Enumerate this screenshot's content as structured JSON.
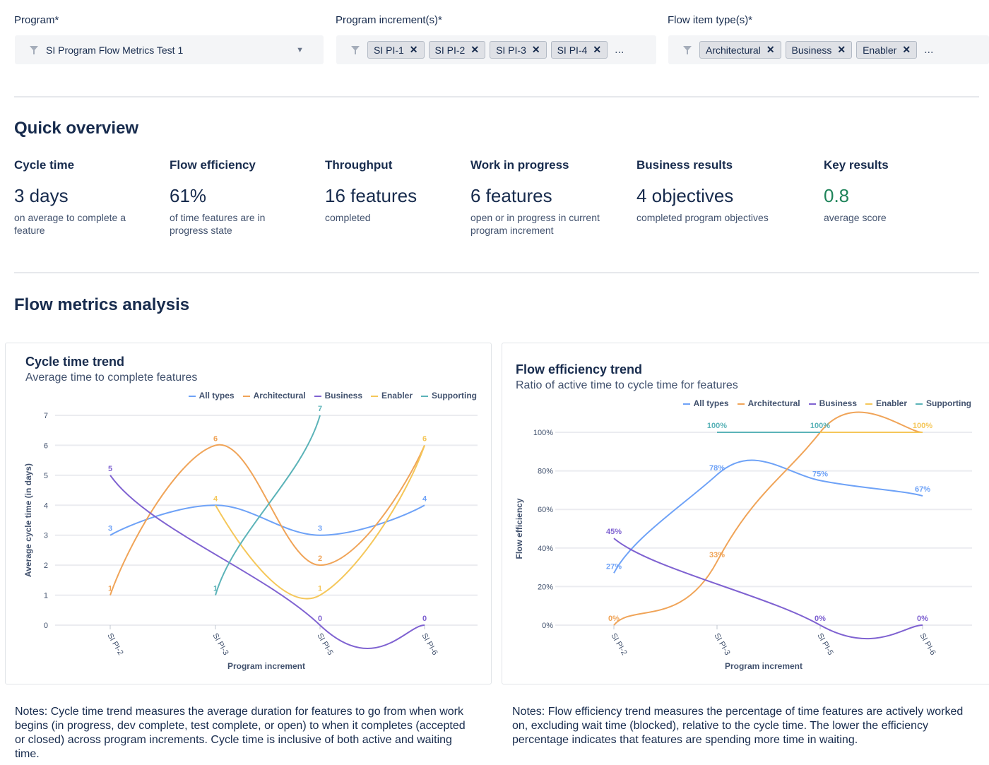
{
  "filters": {
    "program": {
      "label": "Program*",
      "value": "SI Program Flow Metrics Test 1"
    },
    "increments": {
      "label": "Program increment(s)*",
      "chips": [
        "SI PI-1",
        "SI PI-2",
        "SI PI-3",
        "SI PI-4"
      ],
      "more": "..."
    },
    "types": {
      "label": "Flow item type(s)*",
      "chips": [
        "Architectural",
        "Business",
        "Enabler"
      ],
      "more": "..."
    }
  },
  "quick_overview": {
    "title": "Quick overview",
    "metrics": [
      {
        "title": "Cycle time",
        "value": "3 days",
        "desc": "on average to complete a feature"
      },
      {
        "title": "Flow efficiency",
        "value": "61%",
        "desc": "of time features are in progress state"
      },
      {
        "title": "Throughput",
        "value": "16 features",
        "desc": "completed"
      },
      {
        "title": "Work in progress",
        "value": "6 features",
        "desc": "open or in progress in current program increment"
      },
      {
        "title": "Business results",
        "value": "4 objectives",
        "desc": "completed program objectives"
      },
      {
        "title": "Key results",
        "value": "0.8",
        "desc": "average score",
        "color": "#1f845a"
      }
    ]
  },
  "analysis": {
    "title": "Flow metrics analysis"
  },
  "colors": {
    "All types": "#6ea2f7",
    "Architectural": "#f0a458",
    "Business": "#7f62d1",
    "Enabler": "#f5c75a",
    "Supporting": "#5bb3b8"
  },
  "chart_data": [
    {
      "type": "line",
      "title": "Cycle time trend",
      "subtitle": "Average time to complete features",
      "xlabel": "Program increment",
      "ylabel": "Average cycle time (in days)",
      "categories": [
        "SI PI-2",
        "SI PI-3",
        "SI PI-5",
        "SI PI-6"
      ],
      "ylim": [
        0,
        7
      ],
      "yticks": [
        "0",
        "1",
        "2",
        "3",
        "4",
        "5",
        "6",
        "7"
      ],
      "grid": true,
      "legend": "top-right",
      "series": [
        {
          "name": "All types",
          "values": [
            3,
            4,
            3,
            4
          ]
        },
        {
          "name": "Architectural",
          "values": [
            1,
            6,
            2,
            6
          ]
        },
        {
          "name": "Business",
          "values": [
            5,
            null,
            0,
            0
          ]
        },
        {
          "name": "Enabler",
          "values": [
            null,
            4,
            1,
            6
          ]
        },
        {
          "name": "Supporting",
          "values": [
            null,
            1,
            7,
            null
          ]
        }
      ],
      "notes": "Notes: Cycle time trend measures the average duration for features to go from when work begins (in progress, dev complete, test complete, or open) to when it completes (accepted or closed) across program increments. Cycle time is inclusive of both active and waiting time."
    },
    {
      "type": "line",
      "title": "Flow efficiency trend",
      "subtitle": "Ratio of active time to cycle time for features",
      "xlabel": "Program increment",
      "ylabel": "Flow efficiency",
      "categories": [
        "SI PI-2",
        "SI PI-3",
        "SI PI-5",
        "SI PI-6"
      ],
      "ylim": [
        0,
        100
      ],
      "yticks": [
        "0%",
        "20%",
        "40%",
        "60%",
        "80%",
        "100%"
      ],
      "grid": true,
      "legend": "top-right",
      "unit": "%",
      "series": [
        {
          "name": "All types",
          "values": [
            27,
            78,
            75,
            67
          ]
        },
        {
          "name": "Architectural",
          "values": [
            0,
            33,
            100,
            100
          ]
        },
        {
          "name": "Business",
          "values": [
            45,
            null,
            0,
            0
          ]
        },
        {
          "name": "Enabler",
          "values": [
            null,
            null,
            100,
            100
          ]
        },
        {
          "name": "Supporting",
          "values": [
            null,
            100,
            100,
            null
          ]
        }
      ],
      "notes": "Notes: Flow efficiency trend measures the percentage of time features are actively worked on, excluding wait time (blocked), relative to the cycle time. The lower the efficiency percentage indicates that features are spending more time in waiting."
    }
  ]
}
